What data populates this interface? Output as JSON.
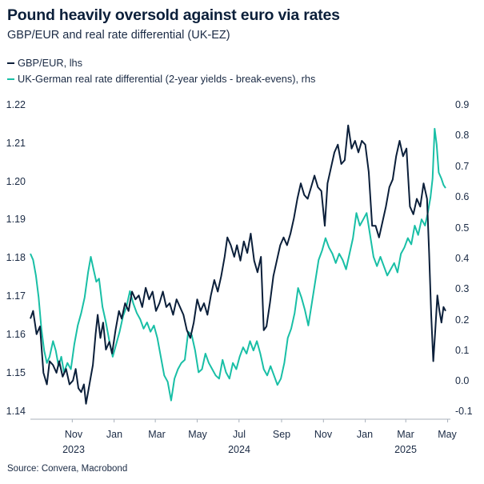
{
  "title": "Pound heavily oversold against euro via rates",
  "subtitle": "GBP/EUR and real rate differential (UK-EZ)",
  "source": "Source: Convera, Macrobond",
  "chart_data": {
    "type": "line",
    "title": "Pound heavily oversold against euro via rates",
    "subtitle": "GBP/EUR and real rate differential (UK-EZ)",
    "x_axis": {
      "month_labels": [
        "Nov",
        "Jan",
        "Mar",
        "May",
        "Jul",
        "Sep",
        "Nov",
        "Jan",
        "Mar",
        "May"
      ],
      "year_labels": [
        "2023",
        "2024",
        "2025"
      ]
    },
    "y_left": {
      "label": "GBP/EUR, lhs",
      "range": [
        1.138,
        1.222
      ],
      "ticks": [
        "1.14",
        "1.15",
        "1.16",
        "1.17",
        "1.18",
        "1.19",
        "1.20",
        "1.21",
        "1.22"
      ]
    },
    "y_right": {
      "label": "rhs",
      "range": [
        -0.11,
        0.93
      ],
      "ticks": [
        "-0.1",
        "0.0",
        "0.1",
        "0.2",
        "0.3",
        "0.4",
        "0.5",
        "0.6",
        "0.7",
        "0.8",
        "0.9"
      ]
    },
    "colors": {
      "gbp_eur": "#0b1f3a",
      "real_rate": "#19bfa6"
    },
    "series": [
      {
        "name": "GBP/EUR, lhs",
        "axis": "left",
        "points": [
          [
            "2023-09-01",
            1.164
          ],
          [
            "2023-09-05",
            1.166
          ],
          [
            "2023-09-10",
            1.16
          ],
          [
            "2023-09-15",
            1.162
          ],
          [
            "2023-09-20",
            1.15
          ],
          [
            "2023-09-25",
            1.147
          ],
          [
            "2023-09-29",
            1.153
          ],
          [
            "2023-10-04",
            1.152
          ],
          [
            "2023-10-09",
            1.15
          ],
          [
            "2023-10-13",
            1.153
          ],
          [
            "2023-10-18",
            1.149
          ],
          [
            "2023-10-23",
            1.151
          ],
          [
            "2023-10-28",
            1.147
          ],
          [
            "2023-11-02",
            1.148
          ],
          [
            "2023-11-06",
            1.151
          ],
          [
            "2023-11-10",
            1.146
          ],
          [
            "2023-11-14",
            1.145
          ],
          [
            "2023-11-18",
            1.147
          ],
          [
            "2023-11-21",
            1.142
          ],
          [
            "2023-11-24",
            1.145
          ],
          [
            "2023-11-28",
            1.149
          ],
          [
            "2023-12-01",
            1.152
          ],
          [
            "2023-12-05",
            1.16
          ],
          [
            "2023-12-08",
            1.165
          ],
          [
            "2023-12-12",
            1.159
          ],
          [
            "2023-12-16",
            1.163
          ],
          [
            "2023-12-20",
            1.156
          ],
          [
            "2023-12-25",
            1.158
          ],
          [
            "2023-12-29",
            1.155
          ],
          [
            "2024-01-03",
            1.161
          ],
          [
            "2024-01-08",
            1.166
          ],
          [
            "2024-01-12",
            1.164
          ],
          [
            "2024-01-17",
            1.168
          ],
          [
            "2024-01-22",
            1.166
          ],
          [
            "2024-01-27",
            1.171
          ],
          [
            "2024-02-01",
            1.169
          ],
          [
            "2024-02-06",
            1.17
          ],
          [
            "2024-02-11",
            1.167
          ],
          [
            "2024-02-16",
            1.172
          ],
          [
            "2024-02-21",
            1.169
          ],
          [
            "2024-02-26",
            1.171
          ],
          [
            "2024-03-02",
            1.166
          ],
          [
            "2024-03-07",
            1.168
          ],
          [
            "2024-03-12",
            1.171
          ],
          [
            "2024-03-17",
            1.167
          ],
          [
            "2024-03-22",
            1.168
          ],
          [
            "2024-03-27",
            1.165
          ],
          [
            "2024-04-01",
            1.169
          ],
          [
            "2024-04-06",
            1.167
          ],
          [
            "2024-04-11",
            1.165
          ],
          [
            "2024-04-16",
            1.161
          ],
          [
            "2024-04-21",
            1.159
          ],
          [
            "2024-04-26",
            1.163
          ],
          [
            "2024-05-01",
            1.169
          ],
          [
            "2024-05-06",
            1.166
          ],
          [
            "2024-05-11",
            1.168
          ],
          [
            "2024-05-16",
            1.165
          ],
          [
            "2024-05-21",
            1.17
          ],
          [
            "2024-05-26",
            1.174
          ],
          [
            "2024-05-31",
            1.171
          ],
          [
            "2024-06-05",
            1.175
          ],
          [
            "2024-06-10",
            1.18
          ],
          [
            "2024-06-14",
            1.185
          ],
          [
            "2024-06-19",
            1.183
          ],
          [
            "2024-06-24",
            1.18
          ],
          [
            "2024-06-28",
            1.183
          ],
          [
            "2024-07-03",
            1.179
          ],
          [
            "2024-07-08",
            1.184
          ],
          [
            "2024-07-13",
            1.181
          ],
          [
            "2024-07-18",
            1.186
          ],
          [
            "2024-07-23",
            1.179
          ],
          [
            "2024-07-28",
            1.176
          ],
          [
            "2024-08-02",
            1.18
          ],
          [
            "2024-08-06",
            1.161
          ],
          [
            "2024-08-10",
            1.162
          ],
          [
            "2024-08-15",
            1.168
          ],
          [
            "2024-08-20",
            1.175
          ],
          [
            "2024-08-25",
            1.179
          ],
          [
            "2024-08-30",
            1.183
          ],
          [
            "2024-09-04",
            1.185
          ],
          [
            "2024-09-09",
            1.183
          ],
          [
            "2024-09-14",
            1.186
          ],
          [
            "2024-09-19",
            1.19
          ],
          [
            "2024-09-24",
            1.195
          ],
          [
            "2024-09-29",
            1.199
          ],
          [
            "2024-10-04",
            1.196
          ],
          [
            "2024-10-09",
            1.195
          ],
          [
            "2024-10-14",
            1.198
          ],
          [
            "2024-10-19",
            1.201
          ],
          [
            "2024-10-24",
            1.198
          ],
          [
            "2024-10-29",
            1.197
          ],
          [
            "2024-11-03",
            1.188
          ],
          [
            "2024-11-07",
            1.199
          ],
          [
            "2024-11-12",
            1.203
          ],
          [
            "2024-11-17",
            1.207
          ],
          [
            "2024-11-22",
            1.209
          ],
          [
            "2024-11-27",
            1.204
          ],
          [
            "2024-12-02",
            1.205
          ],
          [
            "2024-12-07",
            1.214
          ],
          [
            "2024-12-12",
            1.208
          ],
          [
            "2024-12-17",
            1.21
          ],
          [
            "2024-12-22",
            1.207
          ],
          [
            "2024-12-27",
            1.21
          ],
          [
            "2025-01-01",
            1.209
          ],
          [
            "2025-01-06",
            1.202
          ],
          [
            "2025-01-11",
            1.188
          ],
          [
            "2025-01-16",
            1.188
          ],
          [
            "2025-01-21",
            1.185
          ],
          [
            "2025-01-26",
            1.189
          ],
          [
            "2025-01-31",
            1.193
          ],
          [
            "2025-02-05",
            1.198
          ],
          [
            "2025-02-10",
            1.2
          ],
          [
            "2025-02-15",
            1.206
          ],
          [
            "2025-02-20",
            1.21
          ],
          [
            "2025-02-25",
            1.206
          ],
          [
            "2025-03-02",
            1.208
          ],
          [
            "2025-03-07",
            1.193
          ],
          [
            "2025-03-12",
            1.191
          ],
          [
            "2025-03-17",
            1.195
          ],
          [
            "2025-03-22",
            1.193
          ],
          [
            "2025-03-27",
            1.199
          ],
          [
            "2025-04-01",
            1.195
          ],
          [
            "2025-04-04",
            1.181
          ],
          [
            "2025-04-07",
            1.165
          ],
          [
            "2025-04-10",
            1.153
          ],
          [
            "2025-04-13",
            1.161
          ],
          [
            "2025-04-16",
            1.17
          ],
          [
            "2025-04-19",
            1.166
          ],
          [
            "2025-04-22",
            1.163
          ],
          [
            "2025-04-25",
            1.167
          ],
          [
            "2025-04-28",
            1.166
          ]
        ]
      },
      {
        "name": "UK-German real rate differential (2-year yields - break-evens), rhs",
        "axis": "right",
        "points": [
          [
            "2023-09-01",
            0.42
          ],
          [
            "2023-09-05",
            0.4
          ],
          [
            "2023-09-09",
            0.35
          ],
          [
            "2023-09-13",
            0.28
          ],
          [
            "2023-09-17",
            0.18
          ],
          [
            "2023-09-21",
            0.11
          ],
          [
            "2023-09-25",
            0.07
          ],
          [
            "2023-09-29",
            0.09
          ],
          [
            "2023-10-04",
            0.14
          ],
          [
            "2023-10-08",
            0.11
          ],
          [
            "2023-10-12",
            0.06
          ],
          [
            "2023-10-16",
            0.09
          ],
          [
            "2023-10-20",
            0.04
          ],
          [
            "2023-10-25",
            0.07
          ],
          [
            "2023-10-30",
            0.05
          ],
          [
            "2023-11-04",
            0.13
          ],
          [
            "2023-11-09",
            0.19
          ],
          [
            "2023-11-14",
            0.23
          ],
          [
            "2023-11-19",
            0.28
          ],
          [
            "2023-11-24",
            0.36
          ],
          [
            "2023-11-28",
            0.41
          ],
          [
            "2023-12-02",
            0.37
          ],
          [
            "2023-12-06",
            0.33
          ],
          [
            "2023-12-10",
            0.34
          ],
          [
            "2023-12-15",
            0.25
          ],
          [
            "2023-12-20",
            0.2
          ],
          [
            "2023-12-25",
            0.14
          ],
          [
            "2023-12-30",
            0.09
          ],
          [
            "2024-01-04",
            0.13
          ],
          [
            "2024-01-09",
            0.17
          ],
          [
            "2024-01-14",
            0.22
          ],
          [
            "2024-01-19",
            0.25
          ],
          [
            "2024-01-24",
            0.3
          ],
          [
            "2024-01-29",
            0.26
          ],
          [
            "2024-02-03",
            0.23
          ],
          [
            "2024-02-08",
            0.21
          ],
          [
            "2024-02-13",
            0.18
          ],
          [
            "2024-02-18",
            0.2
          ],
          [
            "2024-02-23",
            0.17
          ],
          [
            "2024-02-28",
            0.19
          ],
          [
            "2024-03-04",
            0.15
          ],
          [
            "2024-03-09",
            0.09
          ],
          [
            "2024-03-14",
            0.03
          ],
          [
            "2024-03-19",
            0.01
          ],
          [
            "2024-03-24",
            -0.05
          ],
          [
            "2024-03-29",
            0.02
          ],
          [
            "2024-04-03",
            0.05
          ],
          [
            "2024-04-08",
            0.07
          ],
          [
            "2024-04-13",
            0.08
          ],
          [
            "2024-04-18",
            0.17
          ],
          [
            "2024-04-23",
            0.16
          ],
          [
            "2024-04-28",
            0.11
          ],
          [
            "2024-05-03",
            0.04
          ],
          [
            "2024-05-08",
            0.05
          ],
          [
            "2024-05-13",
            0.1
          ],
          [
            "2024-05-18",
            0.07
          ],
          [
            "2024-05-23",
            0.05
          ],
          [
            "2024-05-28",
            0.03
          ],
          [
            "2024-06-02",
            0.02
          ],
          [
            "2024-06-07",
            0.08
          ],
          [
            "2024-06-12",
            0.04
          ],
          [
            "2024-06-17",
            0.02
          ],
          [
            "2024-06-22",
            0.07
          ],
          [
            "2024-06-27",
            0.05
          ],
          [
            "2024-07-02",
            0.09
          ],
          [
            "2024-07-07",
            0.12
          ],
          [
            "2024-07-12",
            0.1
          ],
          [
            "2024-07-17",
            0.14
          ],
          [
            "2024-07-22",
            0.11
          ],
          [
            "2024-07-27",
            0.14
          ],
          [
            "2024-08-01",
            0.1
          ],
          [
            "2024-08-06",
            0.05
          ],
          [
            "2024-08-11",
            0.03
          ],
          [
            "2024-08-16",
            0.06
          ],
          [
            "2024-08-21",
            0.03
          ],
          [
            "2024-08-26",
            0.0
          ],
          [
            "2024-08-31",
            0.02
          ],
          [
            "2024-09-05",
            0.07
          ],
          [
            "2024-09-10",
            0.15
          ],
          [
            "2024-09-15",
            0.18
          ],
          [
            "2024-09-20",
            0.23
          ],
          [
            "2024-09-25",
            0.31
          ],
          [
            "2024-09-30",
            0.28
          ],
          [
            "2024-10-05",
            0.24
          ],
          [
            "2024-10-10",
            0.19
          ],
          [
            "2024-10-15",
            0.26
          ],
          [
            "2024-10-20",
            0.33
          ],
          [
            "2024-10-25",
            0.4
          ],
          [
            "2024-10-30",
            0.43
          ],
          [
            "2024-11-04",
            0.47
          ],
          [
            "2024-11-09",
            0.44
          ],
          [
            "2024-11-14",
            0.42
          ],
          [
            "2024-11-19",
            0.39
          ],
          [
            "2024-11-24",
            0.42
          ],
          [
            "2024-11-29",
            0.4
          ],
          [
            "2024-12-04",
            0.37
          ],
          [
            "2024-12-09",
            0.42
          ],
          [
            "2024-12-14",
            0.47
          ],
          [
            "2024-12-19",
            0.55
          ],
          [
            "2024-12-24",
            0.51
          ],
          [
            "2024-12-29",
            0.53
          ],
          [
            "2025-01-03",
            0.55
          ],
          [
            "2025-01-08",
            0.48
          ],
          [
            "2025-01-13",
            0.41
          ],
          [
            "2025-01-18",
            0.38
          ],
          [
            "2025-01-23",
            0.41
          ],
          [
            "2025-01-28",
            0.38
          ],
          [
            "2025-02-02",
            0.35
          ],
          [
            "2025-02-07",
            0.37
          ],
          [
            "2025-02-12",
            0.39
          ],
          [
            "2025-02-17",
            0.36
          ],
          [
            "2025-02-22",
            0.42
          ],
          [
            "2025-02-27",
            0.44
          ],
          [
            "2025-03-04",
            0.47
          ],
          [
            "2025-03-09",
            0.45
          ],
          [
            "2025-03-14",
            0.51
          ],
          [
            "2025-03-19",
            0.48
          ],
          [
            "2025-03-24",
            0.53
          ],
          [
            "2025-03-29",
            0.51
          ],
          [
            "2025-04-02",
            0.55
          ],
          [
            "2025-04-06",
            0.6
          ],
          [
            "2025-04-09",
            0.66
          ],
          [
            "2025-04-12",
            0.82
          ],
          [
            "2025-04-15",
            0.77
          ],
          [
            "2025-04-18",
            0.68
          ],
          [
            "2025-04-22",
            0.66
          ],
          [
            "2025-04-25",
            0.64
          ],
          [
            "2025-04-28",
            0.63
          ]
        ]
      }
    ]
  }
}
